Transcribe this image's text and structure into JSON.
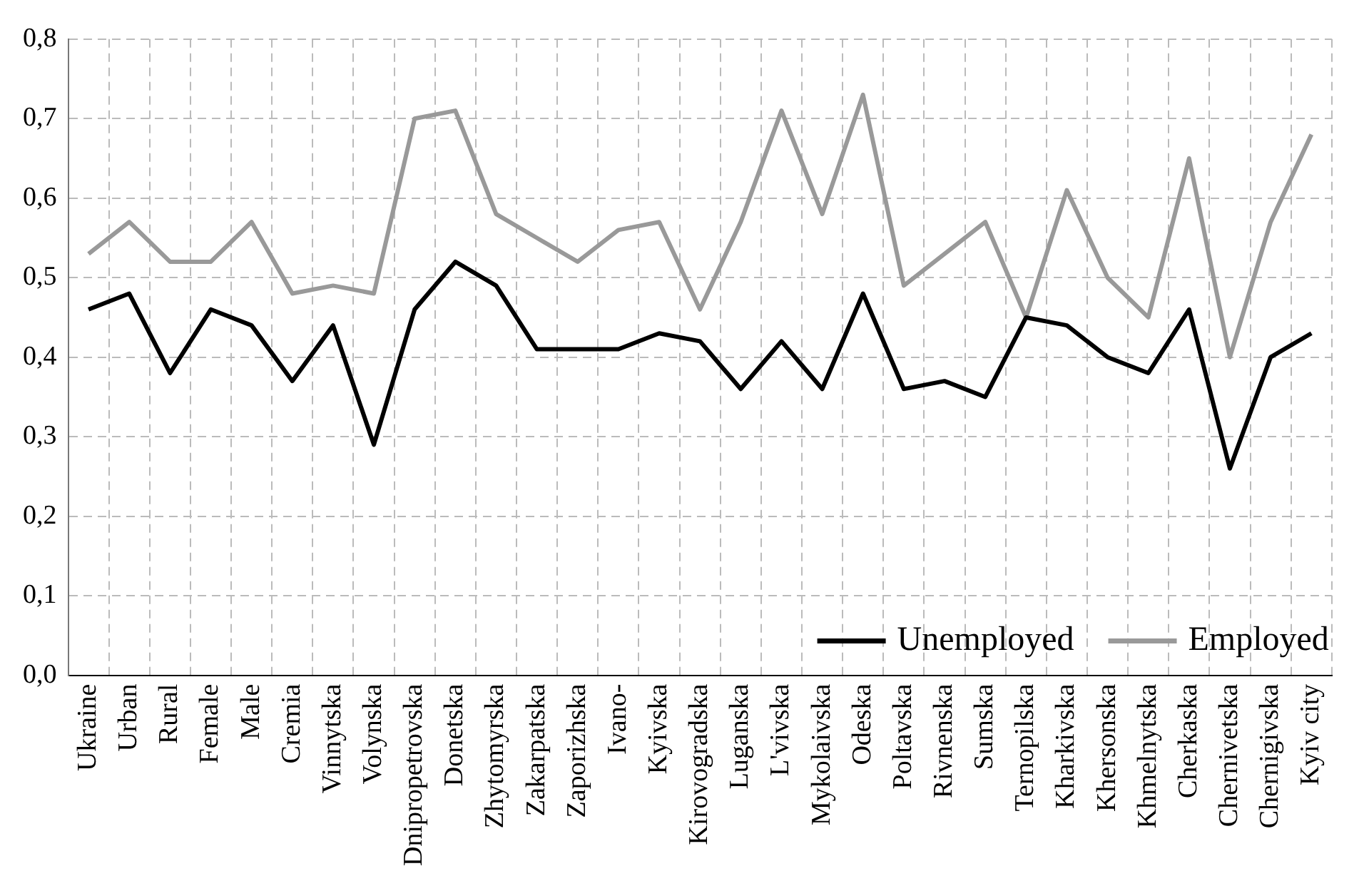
{
  "chart_data": {
    "type": "line",
    "categories": [
      "Ukraine",
      "Urban",
      "Rural",
      "Female",
      "Male",
      "Cremia",
      "Vinnytska",
      "Volynska",
      "Dnipropetrovska",
      "Donetska",
      "Zhytomyrska",
      "Zakarpatska",
      "Zaporizhska",
      "Ivano-",
      "Kyivska",
      "Kirovogradska",
      "Luganska",
      "L'vivska",
      "Mykolaivska",
      "Odeska",
      "Poltavska",
      "Rivnenska",
      "Sumska",
      "Ternopilska",
      "Kharkivska",
      "Khersonska",
      "Khmelnytska",
      "Cherkaska",
      "Chernivetska",
      "Chernigivska",
      "Kyiv city"
    ],
    "series": [
      {
        "name": "Unemployed",
        "color": "#000000",
        "values": [
          0.46,
          0.48,
          0.38,
          0.46,
          0.44,
          0.37,
          0.44,
          0.29,
          0.46,
          0.52,
          0.49,
          0.41,
          0.41,
          0.41,
          0.43,
          0.42,
          0.36,
          0.42,
          0.36,
          0.48,
          0.36,
          0.37,
          0.35,
          0.45,
          0.44,
          0.4,
          0.38,
          0.46,
          0.26,
          0.4,
          0.43
        ]
      },
      {
        "name": "Employed",
        "color": "#999999",
        "values": [
          0.53,
          0.57,
          0.52,
          0.52,
          0.57,
          0.48,
          0.49,
          0.48,
          0.7,
          0.71,
          0.58,
          0.55,
          0.52,
          0.56,
          0.57,
          0.46,
          0.57,
          0.71,
          0.58,
          0.73,
          0.49,
          0.53,
          0.57,
          0.45,
          0.61,
          0.5,
          0.45,
          0.65,
          0.4,
          0.57,
          0.68
        ]
      }
    ],
    "ylim": [
      0,
      0.8
    ],
    "yticks": [
      {
        "value": 0,
        "label": "0,0"
      },
      {
        "value": 0.1,
        "label": "0,1"
      },
      {
        "value": 0.2,
        "label": "0,2"
      },
      {
        "value": 0.3,
        "label": "0,3"
      },
      {
        "value": 0.4,
        "label": "0,4"
      },
      {
        "value": 0.5,
        "label": "0,5"
      },
      {
        "value": 0.6,
        "label": "0,6"
      },
      {
        "value": 0.7,
        "label": "0,7"
      },
      {
        "value": 0.8,
        "label": "0,8"
      }
    ],
    "grid": true,
    "legend": "bottom right",
    "marker": "none",
    "line_style": "solid"
  }
}
